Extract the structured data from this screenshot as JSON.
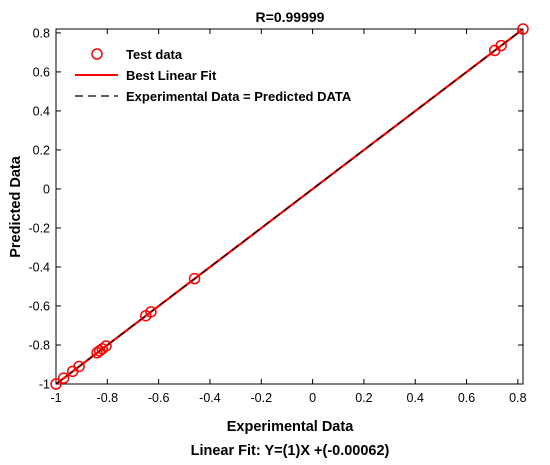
{
  "chart_data": {
    "type": "scatter",
    "title": "R=0.99999",
    "xlabel": "Experimental Data",
    "ylabel": "Predicted Data",
    "footer": "Linear Fit: Y=(1)X +(-0.00062)",
    "xlim": [
      -1,
      0.82
    ],
    "ylim": [
      -1,
      0.82
    ],
    "x_ticks": [
      -1,
      -0.8,
      -0.6,
      -0.4,
      -0.2,
      0,
      0.2,
      0.4,
      0.6,
      0.8
    ],
    "y_ticks": [
      -1,
      -0.8,
      -0.6,
      -0.4,
      -0.2,
      0,
      0.2,
      0.4,
      0.6,
      0.8
    ],
    "grid": false,
    "legend_position": "top-left",
    "series": [
      {
        "name": "Test data",
        "kind": "markers",
        "color": "#ff0000",
        "x": [
          -1.0,
          -0.97,
          -0.935,
          -0.91,
          -0.84,
          -0.83,
          -0.82,
          -0.805,
          -0.65,
          -0.63,
          -0.46,
          0.71,
          0.735,
          0.82
        ],
        "y": [
          -1.0,
          -0.97,
          -0.935,
          -0.91,
          -0.84,
          -0.83,
          -0.82,
          -0.805,
          -0.65,
          -0.63,
          -0.46,
          0.71,
          0.735,
          0.82
        ]
      },
      {
        "name": "Best Linear Fit",
        "kind": "line",
        "color": "#ff0000",
        "slope": 1,
        "intercept": -0.00062
      },
      {
        "name": "Experimental Data = Predicted DATA",
        "kind": "dashed-line",
        "color": "#000000",
        "slope": 1,
        "intercept": 0
      }
    ]
  }
}
